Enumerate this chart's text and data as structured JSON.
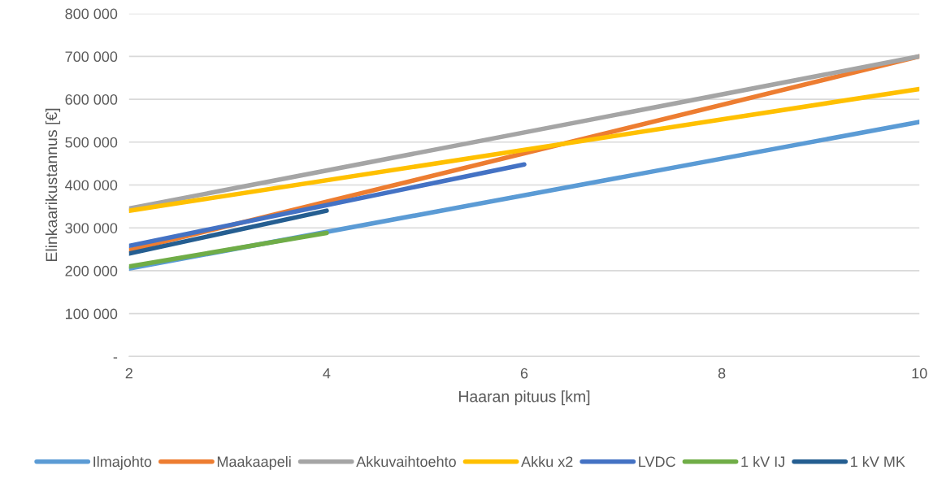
{
  "chart_data": {
    "type": "line",
    "xlabel": "Haaran pituus [km]",
    "ylabel": "Elinkaarikustannus [€]",
    "xlim": [
      2,
      10
    ],
    "xticks": [
      2,
      4,
      6,
      8,
      10
    ],
    "ylim": [
      0,
      800000
    ],
    "yticks": [
      {
        "value": 0,
        "label": "-"
      },
      {
        "value": 100000,
        "label": "100 000"
      },
      {
        "value": 200000,
        "label": "200 000"
      },
      {
        "value": 300000,
        "label": "300 000"
      },
      {
        "value": 400000,
        "label": "400 000"
      },
      {
        "value": 500000,
        "label": "500 000"
      },
      {
        "value": 600000,
        "label": "600 000"
      },
      {
        "value": 700000,
        "label": "700 000"
      },
      {
        "value": 800000,
        "label": "800 000"
      }
    ],
    "grid": "y",
    "legend": "bottom",
    "marker": "none",
    "line_style": "solid",
    "series": [
      {
        "name": "Ilmajohto",
        "color": "#5b9bd5",
        "x": [
          2,
          10
        ],
        "values": [
          205000,
          547000
        ]
      },
      {
        "name": "Maakaapeli",
        "color": "#ed7d31",
        "x": [
          2,
          10
        ],
        "values": [
          248000,
          700000
        ]
      },
      {
        "name": "Akkuvaihtoehto",
        "color": "#a5a5a5",
        "x": [
          2,
          10
        ],
        "values": [
          345000,
          700000
        ]
      },
      {
        "name": "Akku x2",
        "color": "#ffc000",
        "x": [
          2,
          10
        ],
        "values": [
          340000,
          624000
        ]
      },
      {
        "name": "LVDC",
        "color": "#4472c4",
        "x": [
          2,
          6
        ],
        "values": [
          258000,
          448000
        ]
      },
      {
        "name": "1 kV IJ",
        "color": "#70ad47",
        "x": [
          2,
          4
        ],
        "values": [
          210000,
          288000
        ]
      },
      {
        "name": "1 kV MK",
        "color": "#255e91",
        "x": [
          2,
          4
        ],
        "values": [
          240000,
          340000
        ]
      }
    ]
  }
}
